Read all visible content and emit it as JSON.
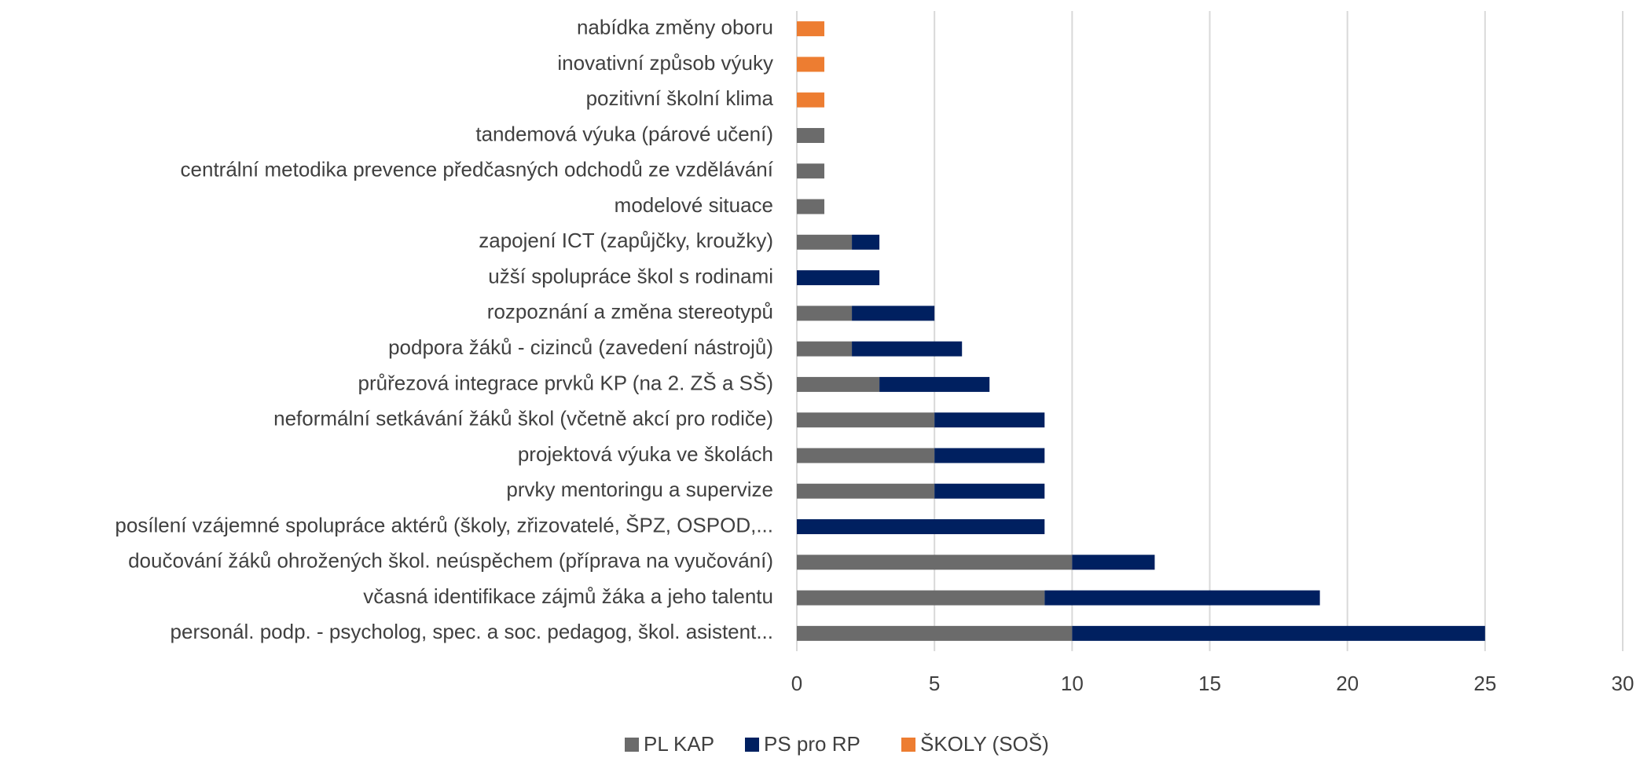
{
  "chart_data": {
    "type": "stacked-barh",
    "categories": [
      "nabídka změny oboru",
      "inovativní způsob výuky",
      "pozitivní školní klima",
      "tandemová výuka (párové učení)",
      "centrální metodika prevence předčasných odchodů ze vzdělávání",
      "modelové situace",
      "zapojení ICT (zapůjčky, kroužky)",
      "užší spolupráce škol s rodinami",
      "rozpoznání a změna stereotypů",
      "podpora žáků - cizinců (zavedení nástrojů)",
      "průřezová integrace prvků KP (na 2. ZŠ a SŠ)",
      "neformální setkávání žáků škol (včetně akcí pro rodiče)",
      "projektová výuka ve školách",
      "prvky mentoringu a supervize",
      "posílení vzájemné spolupráce  aktérů (školy, zřizovatelé, ŠPZ, OSPOD,...",
      "doučování žáků ohrožených škol. neúspěchem (příprava na vyučování)",
      "včasná identifikace zájmů žáka a jeho talentu",
      "personál. podp. - psycholog, spec. a soc. pedagog, škol. asistent..."
    ],
    "series": [
      {
        "name": "PL KAP",
        "color": "#6b6b6b",
        "values": [
          0,
          0,
          0,
          1,
          1,
          1,
          2,
          0,
          2,
          2,
          3,
          5,
          5,
          5,
          0,
          10,
          9,
          10
        ]
      },
      {
        "name": "PS pro RP",
        "color": "#002060",
        "values": [
          0,
          0,
          0,
          0,
          0,
          0,
          1,
          3,
          3,
          4,
          4,
          4,
          4,
          4,
          9,
          3,
          10,
          15
        ]
      },
      {
        "name": "ŠKOLY (SOŠ)",
        "color": "#ed7d31",
        "values": [
          1,
          1,
          1,
          0,
          0,
          0,
          0,
          0,
          0,
          0,
          0,
          0,
          0,
          0,
          0,
          0,
          0,
          0
        ]
      }
    ],
    "xlim": [
      0,
      30
    ],
    "xticks": [
      0,
      5,
      10,
      15,
      20,
      25,
      30
    ],
    "grid": true,
    "legend": "bottom"
  }
}
